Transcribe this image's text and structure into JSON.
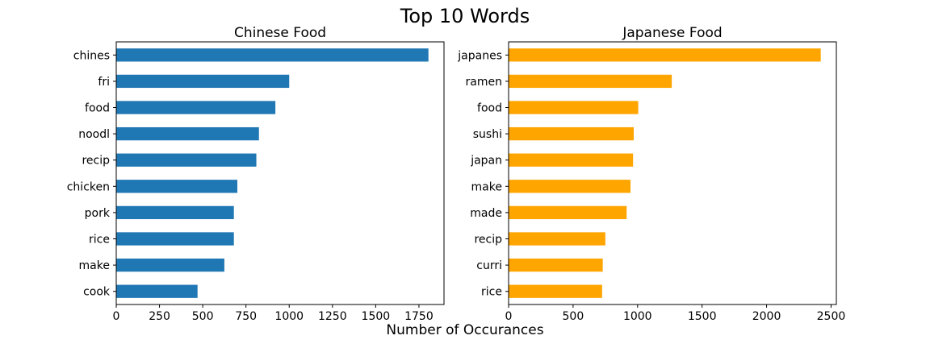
{
  "figure": {
    "title": "Top 10 Words",
    "xlabel": "Number of Occurances"
  },
  "chart_data": [
    {
      "type": "bar",
      "orientation": "horizontal",
      "title": "Chinese Food",
      "color": "#1f77b4",
      "categories": [
        "chines",
        "fri",
        "food",
        "noodl",
        "recip",
        "chicken",
        "pork",
        "rice",
        "make",
        "cook"
      ],
      "values": [
        1805,
        1000,
        920,
        825,
        810,
        700,
        680,
        680,
        625,
        470
      ],
      "xticks": [
        0,
        250,
        500,
        750,
        1000,
        1250,
        1500,
        1750
      ],
      "xlim": [
        0,
        1895
      ]
    },
    {
      "type": "bar",
      "orientation": "horizontal",
      "title": "Japanese Food",
      "color": "#ffa500",
      "categories": [
        "japanes",
        "ramen",
        "food",
        "sushi",
        "japan",
        "make",
        "made",
        "recip",
        "curri",
        "rice"
      ],
      "values": [
        2420,
        1265,
        1005,
        970,
        965,
        945,
        915,
        750,
        730,
        725
      ],
      "xticks": [
        0,
        500,
        1000,
        1500,
        2000,
        2500
      ],
      "xlim": [
        0,
        2541
      ]
    }
  ]
}
